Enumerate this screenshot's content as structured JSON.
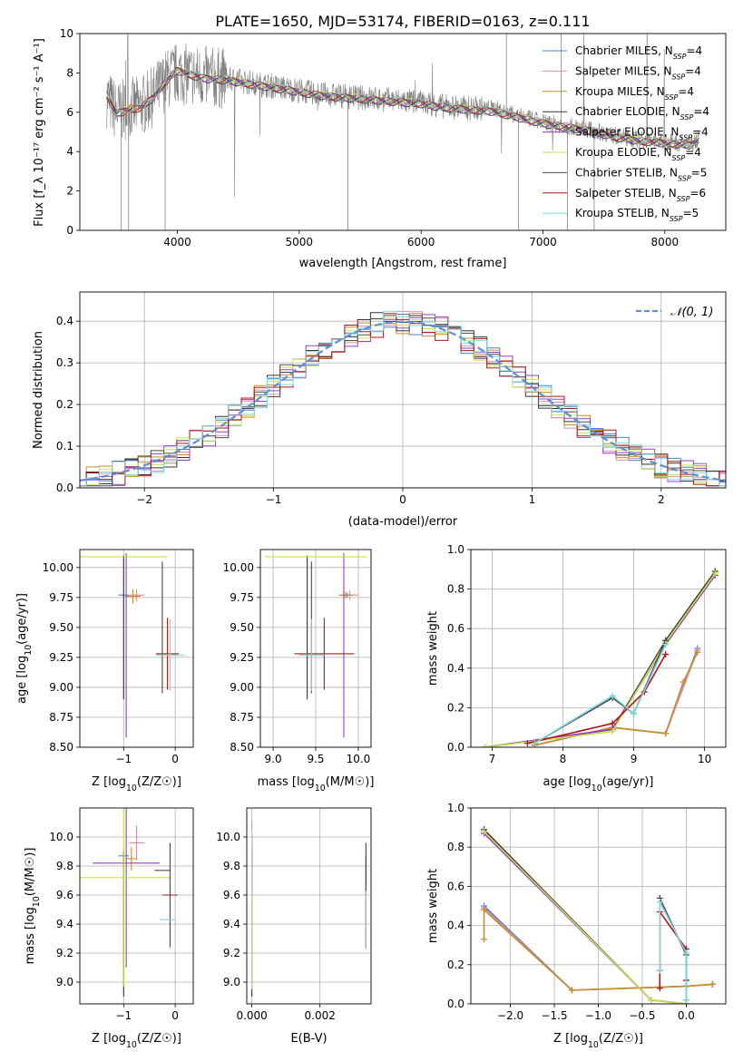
{
  "figure": {
    "title": "PLATE=1650, MJD=53174, FIBERID=0163, z=0.111"
  },
  "colors": {
    "Chabrier MILES": "#4a7fd4",
    "Salpeter MILES": "#e08aa6",
    "Kroupa MILES": "#c48f2a",
    "Chabrier ELODIE": "#333333",
    "Salpeter ELODIE": "#9a3cc9",
    "Kroupa ELODIE": "#c6e24a",
    "Chabrier STELIB": "#4b4b4b",
    "Salpeter STELIB": "#b31515",
    "Kroupa STELIB": "#7dd8e0",
    "data": "#808080",
    "orange": "#e07a3a",
    "normal": "#5b8fd9",
    "grid": "#b0b0b0"
  },
  "chart_data": [
    {
      "id": "spectrum",
      "type": "line",
      "title": "PLATE=1650, MJD=53174, FIBERID=0163, z=0.111",
      "xlabel": "wavelength [Angstrom, rest frame]",
      "ylabel": "Flux [f_λ 10⁻¹⁷ erg cm⁻² s⁻¹ A⁻¹]",
      "xlim": [
        3200,
        8500
      ],
      "ylim": [
        0,
        10
      ],
      "xticks": [
        4000,
        5000,
        6000,
        7000,
        8000
      ],
      "yticks": [
        0,
        2,
        4,
        6,
        8,
        10
      ],
      "grid": false,
      "legend": "top-right",
      "legend_entries": [
        {
          "main": "Chabrier MILES, N",
          "sub": "SSP",
          "tail": "=4",
          "color_key": "Chabrier MILES"
        },
        {
          "main": "Salpeter MILES, N",
          "sub": "SSP",
          "tail": "=4",
          "color_key": "Salpeter MILES"
        },
        {
          "main": "Kroupa MILES, N",
          "sub": "SSP",
          "tail": "=4",
          "color_key": "Kroupa MILES"
        },
        {
          "main": "Chabrier ELODIE, N",
          "sub": "SSP",
          "tail": "=4",
          "color_key": "Chabrier ELODIE"
        },
        {
          "main": "Salpeter ELODIE, N",
          "sub": "SSP",
          "tail": "=4",
          "color_key": "Salpeter ELODIE"
        },
        {
          "main": "Kroupa ELODIE, N",
          "sub": "SSP",
          "tail": "=4",
          "color_key": "Kroupa ELODIE"
        },
        {
          "main": "Chabrier STELIB, N",
          "sub": "SSP",
          "tail": "=5",
          "color_key": "Chabrier STELIB"
        },
        {
          "main": "Salpeter STELIB, N",
          "sub": "SSP",
          "tail": "=6",
          "color_key": "Salpeter STELIB"
        },
        {
          "main": "Kroupa STELIB, N",
          "sub": "SSP",
          "tail": "=5",
          "color_key": "Kroupa STELIB"
        }
      ],
      "continuum": {
        "wavelength": [
          3420,
          3500,
          3600,
          3700,
          3800,
          3900,
          4000,
          4100,
          4200,
          4400,
          4600,
          4800,
          5000,
          5200,
          5400,
          5600,
          5800,
          6000,
          6200,
          6400,
          6600,
          6800,
          7000,
          7200,
          7400,
          7600,
          7800,
          8000,
          8200,
          8280
        ],
        "flux": [
          6.8,
          6.0,
          6.2,
          6.3,
          6.8,
          7.6,
          8.0,
          7.9,
          7.8,
          7.7,
          7.5,
          7.3,
          7.1,
          6.9,
          6.8,
          6.7,
          6.6,
          6.5,
          6.3,
          6.2,
          6.2,
          5.8,
          5.5,
          5.3,
          5.1,
          4.8,
          4.6,
          4.5,
          4.4,
          4.7
        ]
      },
      "model_flux": {
        "wavelength": [
          3420,
          3500,
          3600,
          3700,
          3800,
          3900,
          4000,
          4100,
          4200,
          4400,
          4600,
          4800,
          5000,
          5200,
          5400,
          5600,
          5800,
          6000,
          6200,
          6400,
          6600,
          6800,
          7000,
          7200,
          7400,
          7600,
          7800,
          8000,
          8200,
          8280
        ],
        "flux": [
          6.9,
          5.9,
          6.1,
          6.2,
          6.7,
          7.5,
          8.1,
          7.9,
          7.7,
          7.6,
          7.4,
          7.2,
          7.0,
          6.8,
          6.7,
          6.6,
          6.5,
          6.4,
          6.2,
          6.1,
          6.0,
          5.7,
          5.4,
          5.2,
          5.0,
          4.7,
          4.5,
          4.4,
          4.3,
          4.6
        ]
      }
    },
    {
      "id": "residuals",
      "type": "histogram",
      "xlabel": "(data-model)/error",
      "ylabel": "Normed distribution",
      "xlim": [
        -2.5,
        2.5
      ],
      "ylim": [
        0,
        0.47
      ],
      "xticks": [
        -2,
        -1,
        0,
        1,
        2
      ],
      "yticks": [
        0.0,
        0.1,
        0.2,
        0.3,
        0.4
      ],
      "grid": true,
      "legend": "top-right",
      "legend_label": "𝒩(0, 1)",
      "bin_width": 0.1
    },
    {
      "id": "age-vs-z",
      "type": "scatter",
      "xlabel_main": "Z [log",
      "xlabel_sub": "10",
      "xlabel_tail": "(Z/Z☉)]",
      "ylabel_main": "age  [log",
      "ylabel_sub": "10",
      "ylabel_tail": "(age/yr)]",
      "xlim": [
        -1.85,
        0.35
      ],
      "ylim": [
        8.5,
        10.15
      ],
      "xticks": [
        -1,
        0
      ],
      "yticks": [
        8.5,
        8.75,
        9.0,
        9.25,
        9.5,
        9.75,
        10.0
      ],
      "grid": true,
      "points": [
        {
          "model": "Chabrier MILES",
          "x": -1.0,
          "y": 9.77,
          "xerr": 0.1,
          "yerr": 0.02
        },
        {
          "model": "Salpeter MILES",
          "x": -0.75,
          "y": 9.77,
          "xerr": 0.15,
          "yerr": 0.05
        },
        {
          "model": "Kroupa MILES",
          "x": -0.82,
          "y": 9.76,
          "xerr": 0.15,
          "yerr": 0.06
        },
        {
          "model": "Chabrier ELODIE",
          "x": -1.0,
          "y": 9.5,
          "xerr": 0.0,
          "yerr": 0.6
        },
        {
          "model": "Salpeter ELODIE",
          "x": -0.95,
          "y": 9.35,
          "xerr": 0.0,
          "yerr": 0.77
        },
        {
          "model": "Kroupa ELODIE",
          "x": -1.0,
          "y": 10.09,
          "xerr": 0.85,
          "yerr": 0.0
        },
        {
          "model": "Chabrier STELIB",
          "x": -0.25,
          "y": 9.5,
          "xerr": 0.0,
          "yerr": 0.55
        },
        {
          "model": "Salpeter STELIB",
          "x": -0.15,
          "y": 9.28,
          "xerr": 0.22,
          "yerr": 0.3
        },
        {
          "model": "Kroupa STELIB",
          "x": -0.1,
          "y": 9.27,
          "xerr": 0.28,
          "yerr": 0.3
        }
      ]
    },
    {
      "id": "age-vs-mass",
      "type": "scatter",
      "xlabel_main": "mass [log",
      "xlabel_sub": "10",
      "xlabel_tail": "(M/M☉)]",
      "xlim": [
        8.85,
        10.15
      ],
      "ylim": [
        8.5,
        10.15
      ],
      "xticks": [
        9.0,
        9.5,
        10.0
      ],
      "xtick_labels": [
        "9.0",
        "9.5",
        "10.0"
      ],
      "yticks": [
        8.5,
        8.75,
        9.0,
        9.25,
        9.5,
        9.75,
        10.0
      ],
      "grid": true,
      "points": [
        {
          "model": "Chabrier MILES",
          "x": 9.87,
          "y": 9.77,
          "xerr": 0.07,
          "yerr": 0.02
        },
        {
          "model": "Salpeter MILES",
          "x": 9.9,
          "y": 9.77,
          "xerr": 0.1,
          "yerr": 0.04
        },
        {
          "model": "Kroupa MILES",
          "x": 9.85,
          "y": 9.77,
          "xerr": 0.08,
          "yerr": 0.03
        },
        {
          "model": "Chabrier ELODIE",
          "x": 9.4,
          "y": 9.5,
          "xerr": 0.0,
          "yerr": 0.6
        },
        {
          "model": "Salpeter ELODIE",
          "x": 9.83,
          "y": 9.35,
          "xerr": 0.0,
          "yerr": 0.77
        },
        {
          "model": "Kroupa ELODIE",
          "x": 9.5,
          "y": 10.09,
          "xerr": 0.6,
          "yerr": 0.0
        },
        {
          "model": "Chabrier STELIB",
          "x": 9.45,
          "y": 9.5,
          "xerr": 0.0,
          "yerr": 0.55
        },
        {
          "model": "Salpeter STELIB",
          "x": 9.6,
          "y": 9.28,
          "xerr": 0.35,
          "yerr": 0.3
        },
        {
          "model": "Kroupa STELIB",
          "x": 9.45,
          "y": 9.27,
          "xerr": 0.15,
          "yerr": 0.3
        }
      ]
    },
    {
      "id": "weight-vs-age",
      "type": "line",
      "xlabel_main": "age  [log",
      "xlabel_sub": "10",
      "xlabel_tail": "(age/yr)]",
      "ylabel": "mass weight",
      "xlim": [
        6.7,
        10.3
      ],
      "ylim": [
        0,
        1.0
      ],
      "xticks": [
        7,
        8,
        9,
        10
      ],
      "yticks": [
        0.0,
        0.2,
        0.4,
        0.6,
        0.8,
        1.0
      ],
      "grid": true,
      "series": [
        {
          "model": "Chabrier MILES",
          "x": [
            7.6,
            8.7,
            9.45,
            9.9
          ],
          "y": [
            0.01,
            0.1,
            0.07,
            0.5
          ]
        },
        {
          "model": "Salpeter MILES",
          "x": [
            7.6,
            8.7,
            9.45,
            9.9
          ],
          "y": [
            0.01,
            0.1,
            0.07,
            0.49
          ]
        },
        {
          "model": "Kroupa MILES",
          "x": [
            7.6,
            8.7,
            9.45,
            9.7,
            9.9
          ],
          "y": [
            0.01,
            0.1,
            0.07,
            0.33,
            0.48
          ]
        },
        {
          "model": "Chabrier ELODIE",
          "x": [
            6.9,
            8.7,
            9.45,
            10.15
          ],
          "y": [
            0.0,
            0.09,
            0.54,
            0.89
          ]
        },
        {
          "model": "Salpeter ELODIE",
          "x": [
            6.9,
            8.7,
            9.45,
            10.15
          ],
          "y": [
            0.0,
            0.09,
            0.52,
            0.87
          ]
        },
        {
          "model": "Kroupa ELODIE",
          "x": [
            6.9,
            8.7,
            9.45,
            10.15
          ],
          "y": [
            0.0,
            0.08,
            0.53,
            0.88
          ]
        },
        {
          "model": "Chabrier STELIB",
          "x": [
            7.6,
            8.7,
            9.0,
            9.45
          ],
          "y": [
            0.02,
            0.25,
            0.17,
            0.54
          ]
        },
        {
          "model": "Salpeter STELIB",
          "x": [
            7.5,
            8.7,
            9.15,
            9.45
          ],
          "y": [
            0.02,
            0.12,
            0.28,
            0.47
          ]
        },
        {
          "model": "Kroupa STELIB",
          "x": [
            7.6,
            8.7,
            9.0,
            9.45
          ],
          "y": [
            0.02,
            0.26,
            0.17,
            0.52
          ]
        }
      ]
    },
    {
      "id": "mass-vs-z",
      "type": "scatter",
      "xlabel_main": "Z [log",
      "xlabel_sub": "10",
      "xlabel_tail": "(Z/Z☉)]",
      "ylabel_main": "mass [log",
      "ylabel_sub": "10",
      "ylabel_tail": "(M/M☉)]",
      "xlim": [
        -1.85,
        0.35
      ],
      "ylim": [
        8.85,
        10.2
      ],
      "xticks": [
        -1,
        0
      ],
      "yticks": [
        9.0,
        9.2,
        9.4,
        9.6,
        9.8,
        10.0
      ],
      "grid": true,
      "points": [
        {
          "model": "Chabrier MILES",
          "x": -1.0,
          "y": 9.87,
          "xerr": 0.1,
          "yerr": 0.05
        },
        {
          "model": "Salpeter MILES",
          "x": -0.75,
          "y": 9.96,
          "xerr": 0.15,
          "yerr": 0.12
        },
        {
          "model": "Kroupa MILES",
          "x": -0.85,
          "y": 9.85,
          "xerr": 0.1,
          "yerr": 0.08
        },
        {
          "model": "Chabrier ELODIE",
          "x": -1.0,
          "y": 9.4,
          "xerr": 0.0,
          "yerr": 0.5
        },
        {
          "model": "Salpeter ELODIE",
          "x": -0.95,
          "y": 9.82,
          "xerr": 0.65,
          "yerr": 0.72
        },
        {
          "model": "Kroupa ELODIE",
          "x": -1.0,
          "y": 9.72,
          "xerr": 0.9,
          "yerr": 0.75
        },
        {
          "model": "Chabrier STELIB",
          "x": -0.25,
          "y": 9.77,
          "xerr": 0.15,
          "yerr": 0.0
        },
        {
          "model": "Salpeter STELIB",
          "x": -0.1,
          "y": 9.6,
          "xerr": 0.15,
          "yerr": 0.36
        },
        {
          "model": "Kroupa STELIB",
          "x": -0.15,
          "y": 9.43,
          "xerr": 0.15,
          "yerr": 0.0
        }
      ]
    },
    {
      "id": "mass-vs-ebv",
      "type": "scatter",
      "xlabel": "E(B-V)",
      "xlim": [
        -0.00015,
        0.0035
      ],
      "ylim": [
        8.85,
        10.2
      ],
      "xticks": [
        0.0,
        0.002
      ],
      "xtick_labels": [
        "0.000",
        "0.002"
      ],
      "yticks": [
        9.0,
        9.2,
        9.4,
        9.6,
        9.8,
        10.0
      ],
      "grid": true,
      "points": [
        {
          "model": "Chabrier MILES",
          "x": 0.0,
          "y": 9.87,
          "xerr": 0.0,
          "yerr": 0.05
        },
        {
          "model": "Salpeter MILES",
          "x": 0.0,
          "y": 9.96,
          "xerr": 0.0,
          "yerr": 0.15
        },
        {
          "model": "Kroupa MILES",
          "x": 0.0,
          "y": 9.85,
          "xerr": 0.0,
          "yerr": 0.08
        },
        {
          "model": "Chabrier ELODIE",
          "x": 0.0,
          "y": 9.4,
          "xerr": 0.0,
          "yerr": 0.5
        },
        {
          "model": "Salpeter ELODIE",
          "x": 0.0,
          "y": 9.82,
          "xerr": 0.0,
          "yerr": 0.2
        },
        {
          "model": "Kroupa ELODIE",
          "x": 0.0,
          "y": 9.5,
          "xerr": 0.0,
          "yerr": 0.55
        },
        {
          "model": "Chabrier STELIB",
          "x": 0.00335,
          "y": 9.55,
          "xerr": 0.0,
          "yerr": 0.32
        },
        {
          "model": "Salpeter STELIB",
          "x": 0.00335,
          "y": 9.6,
          "xerr": 0.0,
          "yerr": 0.36
        },
        {
          "model": "Kroupa STELIB",
          "x": 0.00335,
          "y": 9.43,
          "xerr": 0.0,
          "yerr": 0.2
        }
      ]
    },
    {
      "id": "weight-vs-z",
      "type": "line",
      "xlabel_main": "Z [log",
      "xlabel_sub": "10",
      "xlabel_tail": "(Z/Z☉)]",
      "ylabel": "mass weight",
      "xlim": [
        -2.45,
        0.45
      ],
      "ylim": [
        0,
        1.0
      ],
      "xticks": [
        -2.0,
        -1.5,
        -1.0,
        -0.5,
        0.0
      ],
      "xtick_labels": [
        "−2.0",
        "−1.5",
        "−1.0",
        "−0.5",
        "0.0"
      ],
      "yticks": [
        0.0,
        0.2,
        0.4,
        0.6,
        0.8,
        1.0
      ],
      "grid": true,
      "series": [
        {
          "model": "Chabrier MILES",
          "x": [
            -2.3,
            -1.3,
            0.0,
            0.3
          ],
          "y": [
            0.5,
            0.07,
            0.09,
            0.1
          ]
        },
        {
          "model": "Salpeter MILES",
          "x": [
            -2.3,
            -1.3,
            0.0,
            0.3
          ],
          "y": [
            0.49,
            0.07,
            0.09,
            0.1
          ]
        },
        {
          "model": "Kroupa MILES",
          "x": [
            -2.3,
            -2.3,
            -1.3,
            0.0,
            0.3
          ],
          "y": [
            0.33,
            0.48,
            0.07,
            0.09,
            0.1
          ]
        },
        {
          "model": "Chabrier ELODIE",
          "x": [
            -2.3,
            -0.4,
            0.0
          ],
          "y": [
            0.89,
            0.02,
            0.0
          ]
        },
        {
          "model": "Salpeter ELODIE",
          "x": [
            -2.3,
            -0.4,
            0.0
          ],
          "y": [
            0.87,
            0.02,
            0.0
          ]
        },
        {
          "model": "Kroupa ELODIE",
          "x": [
            -2.3,
            -0.4,
            0.0
          ],
          "y": [
            0.88,
            0.02,
            0.0
          ]
        },
        {
          "model": "Chabrier STELIB",
          "x": [
            -0.3,
            -0.3,
            0.0,
            0.0
          ],
          "y": [
            0.17,
            0.54,
            0.25,
            0.02
          ]
        },
        {
          "model": "Salpeter STELIB",
          "x": [
            -0.3,
            -0.3,
            0.0,
            0.0
          ],
          "y": [
            0.08,
            0.47,
            0.28,
            0.12
          ]
        },
        {
          "model": "Kroupa STELIB",
          "x": [
            -0.3,
            -0.3,
            0.0,
            0.0
          ],
          "y": [
            0.17,
            0.52,
            0.26,
            0.02
          ]
        }
      ]
    }
  ]
}
